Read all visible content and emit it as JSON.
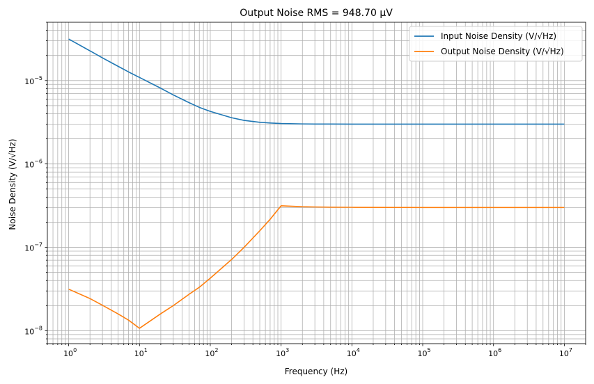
{
  "chart_data": {
    "type": "line",
    "title": "Output Noise RMS = 948.70 μV",
    "xlabel": "Frequency (Hz)",
    "ylabel": "Noise Density (V/√Hz)",
    "xscale": "log",
    "yscale": "log",
    "xlim": [
      0.5,
      20000000
    ],
    "ylim": [
      7e-09,
      5e-05
    ],
    "grid": true,
    "grid_which": "both",
    "legend_position": "top-right",
    "x_tick_exponents": [
      0,
      1,
      2,
      3,
      4,
      5,
      6,
      7
    ],
    "y_tick_exponents": [
      -8,
      -7,
      -6,
      -5
    ],
    "tick_base": "10",
    "x": [
      1,
      2,
      3,
      5,
      7,
      10,
      20,
      30,
      50,
      70,
      100,
      200,
      300,
      500,
      700,
      1000,
      2000,
      3000,
      5000,
      10000,
      100000,
      1000000,
      10000000
    ],
    "series": [
      {
        "name": "Input Noise Density (V/√Hz)",
        "color": "#1f77b4",
        "values": [
          3.15e-05,
          2.27e-05,
          1.87e-05,
          1.48e-05,
          1.27e-05,
          1.09e-05,
          8.08e-06,
          6.73e-06,
          5.44e-06,
          4.77e-06,
          4.27e-06,
          3.58e-06,
          3.33e-06,
          3.16e-06,
          3.1e-06,
          3.05e-06,
          3.02e-06,
          3.01e-06,
          3.01e-06,
          3e-06,
          3e-06,
          3e-06,
          3e-06
        ]
      },
      {
        "name": "Output Noise Density (V/√Hz)",
        "color": "#ff7f0e",
        "values": [
          3.15e-08,
          2.43e-08,
          2.02e-08,
          1.59e-08,
          1.34e-08,
          1.07e-08,
          1.6e-08,
          2e-08,
          2.73e-08,
          3.32e-08,
          4.27e-08,
          7.15e-08,
          1e-07,
          1.58e-07,
          2.17e-07,
          3.15e-07,
          3.07e-07,
          3.05e-07,
          3.03e-07,
          3.02e-07,
          3e-07,
          3e-07,
          3e-07
        ]
      }
    ]
  }
}
